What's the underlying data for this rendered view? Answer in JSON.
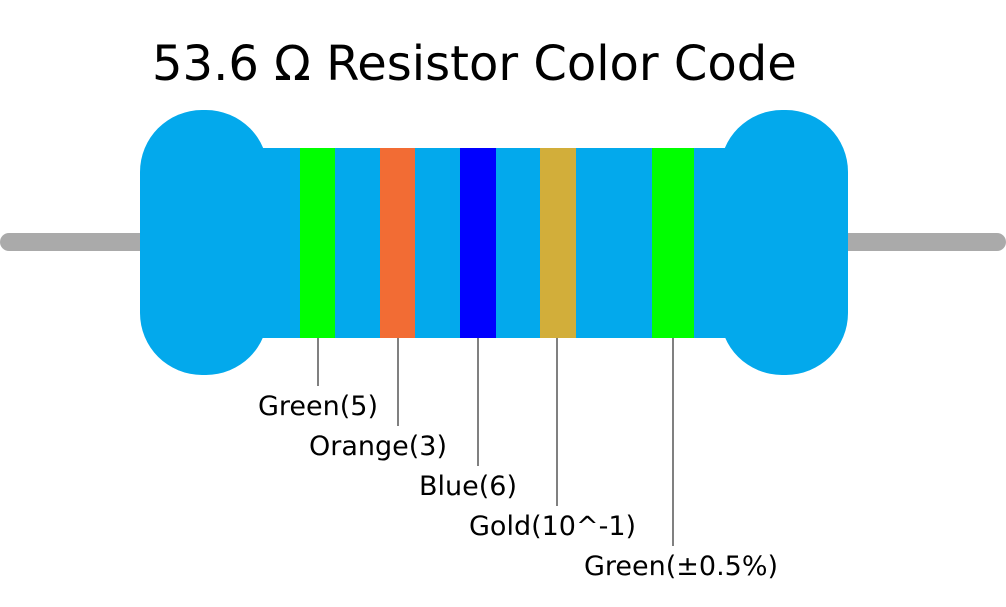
{
  "title": "53.6 Ω Resistor Color Code",
  "bands": [
    {
      "label": "Green(5)"
    },
    {
      "label": "Orange(3)"
    },
    {
      "label": "Blue(6)"
    },
    {
      "label": "Gold(10^-1)"
    },
    {
      "label": "Green(±0.5%)"
    }
  ]
}
